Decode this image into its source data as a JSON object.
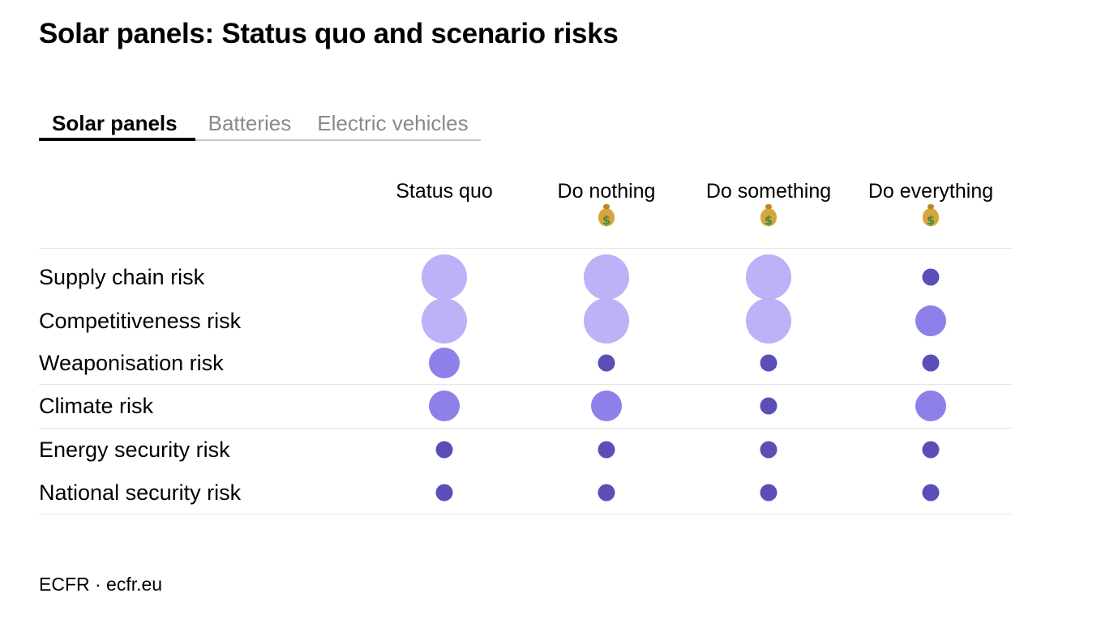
{
  "title": "Solar panels: Status quo and scenario risks",
  "tabs": [
    {
      "label": "Solar panels",
      "active": true
    },
    {
      "label": "Batteries",
      "active": false
    },
    {
      "label": "Electric vehicles",
      "active": false
    }
  ],
  "source": "ECFR · ecfr.eu",
  "icons": {
    "cost": "money-bag-icon"
  },
  "colors": {
    "high": "#bbb2f7",
    "medium": "#8d80e8",
    "low": "#5a4fb6",
    "rule": "#e6e6e6"
  },
  "chart_data": {
    "type": "table",
    "columns": [
      {
        "label": "Status quo",
        "cost_icon": false
      },
      {
        "label": "Do nothing",
        "cost_icon": true
      },
      {
        "label": "Do something",
        "cost_icon": true
      },
      {
        "label": "Do everything",
        "cost_icon": true
      }
    ],
    "rows": [
      {
        "label": "Supply chain risk",
        "values": [
          "high",
          "high",
          "high",
          "low"
        ]
      },
      {
        "label": "Competitiveness risk",
        "values": [
          "high",
          "high",
          "high",
          "medium"
        ]
      },
      {
        "label": "Weaponisation risk",
        "values": [
          "medium",
          "low",
          "low",
          "low"
        ]
      },
      {
        "label": "Climate risk",
        "values": [
          "medium",
          "medium",
          "low",
          "medium"
        ]
      },
      {
        "label": "Energy security risk",
        "values": [
          "low",
          "low",
          "low",
          "low"
        ]
      },
      {
        "label": "National security risk",
        "values": [
          "low",
          "low",
          "low",
          "low"
        ]
      }
    ]
  }
}
